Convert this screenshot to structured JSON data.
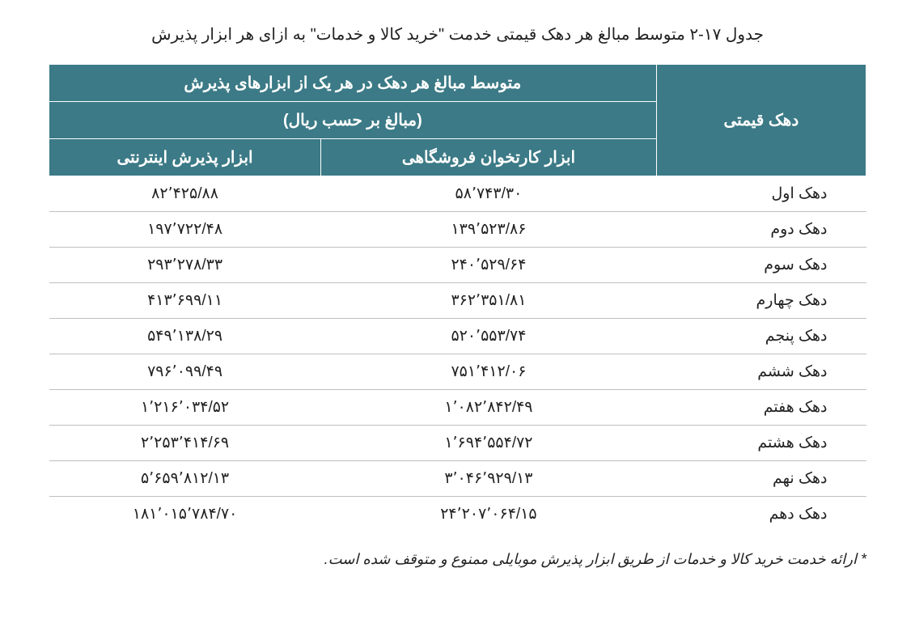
{
  "title": "جدول ۱۷-۲  متوسط مبالغ هر دهک قیمتی خدمت \"خرید کالا و خدمات\" به ازای هر ابزار پذیرش",
  "headers": {
    "decile": "دهک قیمتی",
    "group_top": "متوسط مبالغ هر دهک در هر یک از ابزارهای پذیرش",
    "group_sub": "(مبالغ بر حسب ریال)",
    "col1": "ابزار کارتخوان فروشگاهی",
    "col2": "ابزار پذیرش اینترنتی"
  },
  "rows": [
    {
      "decile": "دهک اول",
      "c1": "۵۸٬۷۴۳/۳۰",
      "c2": "۸۲٬۴۲۵/۸۸"
    },
    {
      "decile": "دهک دوم",
      "c1": "۱۳۹٬۵۲۳/۸۶",
      "c2": "۱۹۷٬۷۲۲/۴۸"
    },
    {
      "decile": "دهک سوم",
      "c1": "۲۴۰٬۵۲۹/۶۴",
      "c2": "۲۹۳٬۲۷۸/۳۳"
    },
    {
      "decile": "دهک چهارم",
      "c1": "۳۶۲٬۳۵۱/۸۱",
      "c2": "۴۱۳٬۶۹۹/۱۱"
    },
    {
      "decile": "دهک پنجم",
      "c1": "۵۲۰٬۵۵۳/۷۴",
      "c2": "۵۴۹٬۱۳۸/۲۹"
    },
    {
      "decile": "دهک ششم",
      "c1": "۷۵۱٬۴۱۲/۰۶",
      "c2": "۷۹۶٬۰۹۹/۴۹"
    },
    {
      "decile": "دهک هفتم",
      "c1": "۱٬۰۸۲٬۸۴۲/۴۹",
      "c2": "۱٬۲۱۶٬۰۳۴/۵۲"
    },
    {
      "decile": "دهک هشتم",
      "c1": "۱٬۶۹۴٬۵۵۴/۷۲",
      "c2": "۲٬۲۵۳٬۴۱۴/۶۹"
    },
    {
      "decile": "دهک نهم",
      "c1": "۳٬۰۴۶٬۹۲۹/۱۳",
      "c2": "۵٬۶۵۹٬۸۱۲/۱۳"
    },
    {
      "decile": "دهک دهم",
      "c1": "۲۴٬۲۰۷٬۰۶۴/۱۵",
      "c2": "۱۸۱٬۰۱۵٬۷۸۴/۷۰"
    }
  ],
  "footnote": "* ارائه خدمت خرید کالا و خدمات از طریق ابزار پذیرش موبایلی ممنوع و متوقف شده است.",
  "style": {
    "header_bg": "#3b7a86",
    "header_fg": "#ffffff",
    "row_border": "#bfbfbf",
    "text_color": "#222222",
    "title_fontsize": 20,
    "header_fontsize": 20,
    "cell_fontsize": 19,
    "footnote_fontsize": 18
  }
}
